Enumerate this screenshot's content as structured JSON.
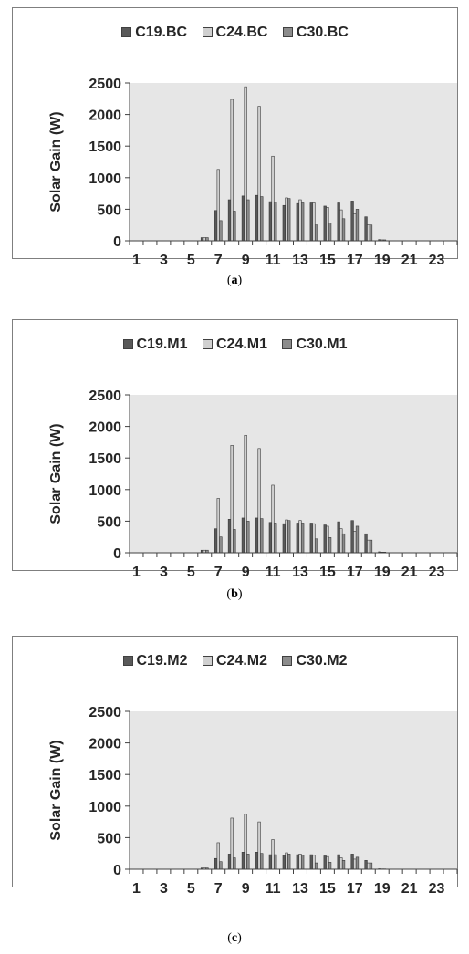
{
  "colors": {
    "plot_bg": "#e6e6e6",
    "axis": "#404040",
    "text": "#262626",
    "series": [
      "#595959",
      "#d0d0d0",
      "#8c8c8c"
    ]
  },
  "chart_data": [
    {
      "type": "bar",
      "caption_letter": "a",
      "ylabel": "Solar Gain (W)",
      "ylim": [
        0,
        2500
      ],
      "yticks": [
        0,
        500,
        1000,
        1500,
        2000,
        2500
      ],
      "xtick_labels": [
        "1",
        "3",
        "5",
        "7",
        "9",
        "11",
        "13",
        "15",
        "17",
        "19",
        "21",
        "23"
      ],
      "categories": [
        1,
        2,
        3,
        4,
        5,
        6,
        7,
        8,
        9,
        10,
        11,
        12,
        13,
        14,
        15,
        16,
        17,
        18,
        19,
        20,
        21,
        22,
        23,
        24
      ],
      "legend_position": "top",
      "grid": false,
      "series": [
        {
          "name": "C19.BC",
          "values": [
            0,
            0,
            0,
            0,
            0,
            50,
            480,
            650,
            710,
            720,
            620,
            560,
            590,
            600,
            550,
            600,
            630,
            380,
            20,
            0,
            0,
            0,
            0,
            0
          ]
        },
        {
          "name": "C24.BC",
          "values": [
            0,
            0,
            0,
            0,
            0,
            50,
            1130,
            2240,
            2440,
            2130,
            1340,
            680,
            650,
            600,
            530,
            490,
            430,
            250,
            15,
            0,
            0,
            0,
            0,
            0
          ]
        },
        {
          "name": "C30.BC",
          "values": [
            0,
            0,
            0,
            0,
            0,
            50,
            320,
            470,
            650,
            700,
            610,
            670,
            600,
            250,
            280,
            350,
            500,
            250,
            15,
            0,
            0,
            0,
            0,
            0
          ]
        }
      ]
    },
    {
      "type": "bar",
      "caption_letter": "b",
      "ylabel": "Solar Gain (W)",
      "ylim": [
        0,
        2500
      ],
      "yticks": [
        0,
        500,
        1000,
        1500,
        2000,
        2500
      ],
      "xtick_labels": [
        "1",
        "3",
        "5",
        "7",
        "9",
        "11",
        "13",
        "15",
        "17",
        "19",
        "21",
        "23"
      ],
      "categories": [
        1,
        2,
        3,
        4,
        5,
        6,
        7,
        8,
        9,
        10,
        11,
        12,
        13,
        14,
        15,
        16,
        17,
        18,
        19,
        20,
        21,
        22,
        23,
        24
      ],
      "legend_position": "top",
      "grid": false,
      "series": [
        {
          "name": "C19.M1",
          "values": [
            0,
            0,
            0,
            0,
            0,
            40,
            380,
            530,
            550,
            550,
            480,
            460,
            470,
            470,
            440,
            490,
            510,
            300,
            15,
            0,
            0,
            0,
            0,
            0
          ]
        },
        {
          "name": "C24.M1",
          "values": [
            0,
            0,
            0,
            0,
            0,
            40,
            860,
            1700,
            1860,
            1650,
            1070,
            520,
            510,
            460,
            420,
            380,
            340,
            200,
            10,
            0,
            0,
            0,
            0,
            0
          ]
        },
        {
          "name": "C30.M1",
          "values": [
            0,
            0,
            0,
            0,
            0,
            40,
            250,
            370,
            500,
            540,
            470,
            510,
            470,
            220,
            240,
            300,
            420,
            200,
            10,
            0,
            0,
            0,
            0,
            0
          ]
        }
      ]
    },
    {
      "type": "bar",
      "caption_letter": "c",
      "ylabel": "Solar Gain (W)",
      "ylim": [
        0,
        2500
      ],
      "yticks": [
        0,
        500,
        1000,
        1500,
        2000,
        2500
      ],
      "xtick_labels": [
        "1",
        "3",
        "5",
        "7",
        "9",
        "11",
        "13",
        "15",
        "17",
        "19",
        "21",
        "23"
      ],
      "categories": [
        1,
        2,
        3,
        4,
        5,
        6,
        7,
        8,
        9,
        10,
        11,
        12,
        13,
        14,
        15,
        16,
        17,
        18,
        19,
        20,
        21,
        22,
        23,
        24
      ],
      "legend_position": "top",
      "grid": false,
      "series": [
        {
          "name": "C19.M2",
          "values": [
            0,
            0,
            0,
            0,
            0,
            20,
            170,
            240,
            270,
            270,
            230,
            220,
            230,
            230,
            210,
            230,
            240,
            140,
            8,
            0,
            0,
            0,
            0,
            0
          ]
        },
        {
          "name": "C24.M2",
          "values": [
            0,
            0,
            0,
            0,
            0,
            20,
            420,
            810,
            870,
            750,
            470,
            260,
            240,
            220,
            200,
            180,
            160,
            100,
            5,
            0,
            0,
            0,
            0,
            0
          ]
        },
        {
          "name": "C30.M2",
          "values": [
            0,
            0,
            0,
            0,
            0,
            20,
            120,
            180,
            240,
            250,
            230,
            240,
            220,
            100,
            110,
            140,
            190,
            100,
            5,
            0,
            0,
            0,
            0,
            0
          ]
        }
      ]
    }
  ]
}
